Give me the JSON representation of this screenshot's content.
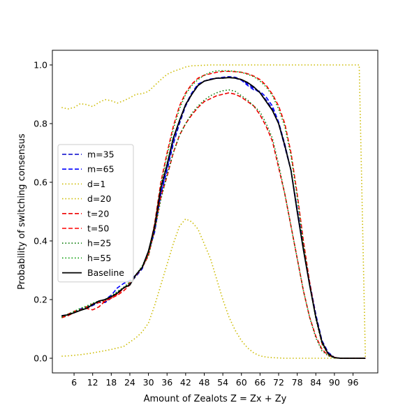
{
  "chart_data": {
    "type": "line",
    "title": "",
    "xlabel": "Amount of Zealots Z = Zx + Zy",
    "ylabel": "Probability of switching consensus",
    "xlim": [
      -1,
      104
    ],
    "ylim": [
      -0.05,
      1.05
    ],
    "xticks": [
      6,
      12,
      18,
      24,
      30,
      36,
      42,
      48,
      54,
      60,
      66,
      72,
      78,
      84,
      90,
      96
    ],
    "yticks": [
      0.0,
      0.2,
      0.4,
      0.6,
      0.8,
      1.0
    ],
    "ytick_labels": [
      "0.0",
      "0.2",
      "0.4",
      "0.6",
      "0.8",
      "1.0"
    ],
    "grid": false,
    "legend_position": "center-left",
    "series": [
      {
        "name": "m=35",
        "color": "#0000cc",
        "dash": "dashed",
        "x": [
          2,
          4,
          6,
          8,
          10,
          12,
          14,
          16,
          18,
          20,
          22,
          24,
          26,
          28,
          30,
          32,
          34,
          36,
          38,
          40,
          42,
          44,
          46,
          48,
          50,
          52,
          54,
          56,
          58,
          60,
          62,
          64,
          66,
          68,
          70,
          72,
          74,
          76,
          78,
          80,
          82,
          84,
          86,
          88,
          90,
          92,
          94,
          96,
          98,
          100
        ],
        "y": [
          0.143,
          0.15,
          0.155,
          0.165,
          0.17,
          0.18,
          0.19,
          0.19,
          0.205,
          0.225,
          0.24,
          0.255,
          0.28,
          0.305,
          0.36,
          0.43,
          0.56,
          0.64,
          0.73,
          0.8,
          0.86,
          0.9,
          0.93,
          0.945,
          0.95,
          0.955,
          0.958,
          0.96,
          0.958,
          0.95,
          0.935,
          0.92,
          0.905,
          0.88,
          0.85,
          0.8,
          0.72,
          0.64,
          0.51,
          0.38,
          0.26,
          0.15,
          0.06,
          0.02,
          0.003,
          0.0,
          0.0,
          0.0,
          0.0,
          0.0
        ]
      },
      {
        "name": "m=65",
        "color": "#0000ff",
        "dash": "dashed",
        "x": [
          2,
          4,
          6,
          8,
          10,
          12,
          14,
          16,
          18,
          20,
          22,
          24,
          26,
          28,
          30,
          32,
          34,
          36,
          38,
          40,
          42,
          44,
          46,
          48,
          50,
          52,
          54,
          56,
          58,
          60,
          62,
          64,
          66,
          68,
          70,
          72,
          74,
          76,
          78,
          80,
          82,
          84,
          86,
          88,
          90,
          92,
          94,
          96,
          98,
          100
        ],
        "y": [
          0.145,
          0.148,
          0.158,
          0.168,
          0.175,
          0.185,
          0.195,
          0.2,
          0.215,
          0.24,
          0.255,
          0.265,
          0.285,
          0.31,
          0.365,
          0.44,
          0.56,
          0.65,
          0.74,
          0.81,
          0.865,
          0.905,
          0.935,
          0.945,
          0.952,
          0.955,
          0.955,
          0.957,
          0.955,
          0.948,
          0.93,
          0.915,
          0.91,
          0.89,
          0.86,
          0.805,
          0.73,
          0.64,
          0.5,
          0.37,
          0.25,
          0.14,
          0.055,
          0.015,
          0.002,
          0.0,
          0.0,
          0.0,
          0.0,
          0.0
        ]
      },
      {
        "name": "d=1",
        "color": "#ccbb00",
        "dash": "dotted",
        "x": [
          2,
          4,
          6,
          8,
          10,
          12,
          14,
          16,
          18,
          20,
          22,
          24,
          26,
          28,
          30,
          32,
          34,
          36,
          38,
          40,
          42,
          44,
          46,
          48,
          50,
          52,
          54,
          56,
          58,
          60,
          62,
          64,
          66,
          68,
          70,
          72,
          74,
          76,
          78,
          80,
          82,
          84,
          86,
          88,
          90,
          92,
          94,
          96,
          98,
          99,
          100
        ],
        "y": [
          0.855,
          0.85,
          0.855,
          0.868,
          0.865,
          0.858,
          0.872,
          0.882,
          0.878,
          0.87,
          0.878,
          0.888,
          0.9,
          0.902,
          0.91,
          0.93,
          0.95,
          0.968,
          0.978,
          0.985,
          0.993,
          0.997,
          0.998,
          0.999,
          1.0,
          1.0,
          1.0,
          1.0,
          1.0,
          1.0,
          1.0,
          1.0,
          1.0,
          1.0,
          1.0,
          1.0,
          1.0,
          1.0,
          1.0,
          1.0,
          1.0,
          1.0,
          1.0,
          1.0,
          1.0,
          1.0,
          1.0,
          1.0,
          1.0,
          0.5,
          0.0
        ]
      },
      {
        "name": "d=20",
        "color": "#ccbb00",
        "dash": "dotted",
        "x": [
          2,
          4,
          6,
          8,
          10,
          12,
          14,
          16,
          18,
          20,
          22,
          24,
          26,
          28,
          30,
          32,
          34,
          36,
          38,
          40,
          42,
          44,
          46,
          48,
          50,
          52,
          54,
          56,
          58,
          60,
          62,
          64,
          66,
          68,
          70,
          72,
          74,
          76,
          78,
          80,
          82,
          84,
          86,
          88,
          90,
          92,
          94,
          96,
          98,
          100
        ],
        "y": [
          0.007,
          0.008,
          0.01,
          0.012,
          0.015,
          0.018,
          0.022,
          0.026,
          0.03,
          0.035,
          0.04,
          0.055,
          0.07,
          0.09,
          0.12,
          0.18,
          0.25,
          0.32,
          0.39,
          0.45,
          0.475,
          0.465,
          0.44,
          0.39,
          0.34,
          0.27,
          0.2,
          0.14,
          0.095,
          0.06,
          0.035,
          0.018,
          0.008,
          0.004,
          0.002,
          0.001,
          0.0,
          0.0,
          0.0,
          0.0,
          0.0,
          0.0,
          0.0,
          0.0,
          0.0,
          0.0,
          0.0,
          0.0,
          0.0,
          0.0
        ]
      },
      {
        "name": "t=20",
        "color": "#ee0000",
        "dash": "dashed",
        "x": [
          2,
          4,
          6,
          8,
          10,
          12,
          14,
          16,
          18,
          20,
          22,
          24,
          26,
          28,
          30,
          32,
          34,
          36,
          38,
          40,
          42,
          44,
          46,
          48,
          50,
          52,
          54,
          56,
          58,
          60,
          62,
          64,
          66,
          68,
          70,
          72,
          74,
          76,
          78,
          80,
          82,
          84,
          86,
          88,
          90,
          92,
          94,
          96,
          98,
          100
        ],
        "y": [
          0.14,
          0.15,
          0.16,
          0.165,
          0.17,
          0.165,
          0.175,
          0.195,
          0.205,
          0.215,
          0.23,
          0.25,
          0.285,
          0.31,
          0.35,
          0.44,
          0.55,
          0.62,
          0.7,
          0.76,
          0.8,
          0.83,
          0.855,
          0.875,
          0.885,
          0.895,
          0.9,
          0.905,
          0.9,
          0.89,
          0.875,
          0.86,
          0.83,
          0.79,
          0.74,
          0.65,
          0.56,
          0.45,
          0.34,
          0.23,
          0.14,
          0.075,
          0.03,
          0.01,
          0.002,
          0.0,
          0.0,
          0.0,
          0.0,
          0.0
        ]
      },
      {
        "name": "t=50",
        "color": "#ff0000",
        "dash": "dashed",
        "x": [
          2,
          4,
          6,
          8,
          10,
          12,
          14,
          16,
          18,
          20,
          22,
          24,
          26,
          28,
          30,
          32,
          34,
          36,
          38,
          40,
          42,
          44,
          46,
          48,
          50,
          52,
          54,
          56,
          58,
          60,
          62,
          64,
          66,
          68,
          70,
          72,
          74,
          76,
          78,
          80,
          82,
          84,
          86,
          88,
          90,
          92,
          94,
          96,
          98,
          100
        ],
        "y": [
          0.138,
          0.145,
          0.155,
          0.165,
          0.175,
          0.185,
          0.19,
          0.195,
          0.205,
          0.218,
          0.238,
          0.258,
          0.283,
          0.31,
          0.355,
          0.46,
          0.6,
          0.7,
          0.79,
          0.86,
          0.905,
          0.935,
          0.955,
          0.965,
          0.97,
          0.975,
          0.978,
          0.978,
          0.977,
          0.975,
          0.97,
          0.962,
          0.95,
          0.93,
          0.9,
          0.86,
          0.8,
          0.7,
          0.56,
          0.4,
          0.26,
          0.14,
          0.05,
          0.015,
          0.003,
          0.0,
          0.0,
          0.0,
          0.0,
          0.0
        ]
      },
      {
        "name": "h=25",
        "color": "#007700",
        "dash": "dotted",
        "x": [
          2,
          4,
          6,
          8,
          10,
          12,
          14,
          16,
          18,
          20,
          22,
          24,
          26,
          28,
          30,
          32,
          34,
          36,
          38,
          40,
          42,
          44,
          46,
          48,
          50,
          52,
          54,
          56,
          58,
          60,
          62,
          64,
          66,
          68,
          70,
          72,
          74,
          76,
          78,
          80,
          82,
          84,
          86,
          88,
          90,
          92,
          94,
          96,
          98,
          100
        ],
        "y": [
          0.14,
          0.148,
          0.158,
          0.165,
          0.175,
          0.185,
          0.192,
          0.198,
          0.21,
          0.225,
          0.24,
          0.258,
          0.285,
          0.31,
          0.35,
          0.435,
          0.54,
          0.625,
          0.7,
          0.76,
          0.8,
          0.835,
          0.86,
          0.88,
          0.895,
          0.905,
          0.912,
          0.915,
          0.91,
          0.895,
          0.88,
          0.86,
          0.84,
          0.8,
          0.75,
          0.66,
          0.56,
          0.45,
          0.34,
          0.23,
          0.14,
          0.07,
          0.025,
          0.008,
          0.001,
          0.0,
          0.0,
          0.0,
          0.0,
          0.0
        ]
      },
      {
        "name": "h=55",
        "color": "#009900",
        "dash": "dotted",
        "x": [
          2,
          4,
          6,
          8,
          10,
          12,
          14,
          16,
          18,
          20,
          22,
          24,
          26,
          28,
          30,
          32,
          34,
          36,
          38,
          40,
          42,
          44,
          46,
          48,
          50,
          52,
          54,
          56,
          58,
          60,
          62,
          64,
          66,
          68,
          70,
          72,
          74,
          76,
          78,
          80,
          82,
          84,
          86,
          88,
          90,
          92,
          94,
          96,
          98,
          100
        ],
        "y": [
          0.14,
          0.15,
          0.16,
          0.17,
          0.178,
          0.188,
          0.195,
          0.2,
          0.212,
          0.228,
          0.242,
          0.26,
          0.285,
          0.315,
          0.36,
          0.455,
          0.59,
          0.69,
          0.78,
          0.85,
          0.9,
          0.93,
          0.95,
          0.965,
          0.975,
          0.98,
          0.98,
          0.98,
          0.978,
          0.975,
          0.968,
          0.96,
          0.945,
          0.925,
          0.895,
          0.85,
          0.79,
          0.69,
          0.55,
          0.39,
          0.25,
          0.135,
          0.048,
          0.012,
          0.002,
          0.0,
          0.0,
          0.0,
          0.0,
          0.0
        ]
      },
      {
        "name": "Baseline",
        "color": "#000000",
        "dash": "solid",
        "x": [
          2,
          4,
          6,
          8,
          10,
          12,
          14,
          16,
          18,
          20,
          22,
          24,
          26,
          28,
          30,
          32,
          34,
          36,
          38,
          40,
          42,
          44,
          46,
          48,
          50,
          52,
          54,
          56,
          58,
          60,
          62,
          64,
          66,
          68,
          70,
          72,
          74,
          76,
          78,
          80,
          82,
          84,
          86,
          88,
          90,
          92,
          94,
          96,
          98,
          100
        ],
        "y": [
          0.145,
          0.148,
          0.155,
          0.163,
          0.17,
          0.183,
          0.195,
          0.2,
          0.21,
          0.222,
          0.24,
          0.25,
          0.285,
          0.31,
          0.365,
          0.45,
          0.58,
          0.66,
          0.75,
          0.81,
          0.865,
          0.9,
          0.93,
          0.945,
          0.95,
          0.955,
          0.955,
          0.957,
          0.955,
          0.95,
          0.94,
          0.925,
          0.905,
          0.875,
          0.845,
          0.8,
          0.725,
          0.64,
          0.5,
          0.37,
          0.25,
          0.14,
          0.055,
          0.015,
          0.002,
          0.0,
          0.0,
          0.0,
          0.0,
          0.0
        ]
      }
    ]
  }
}
